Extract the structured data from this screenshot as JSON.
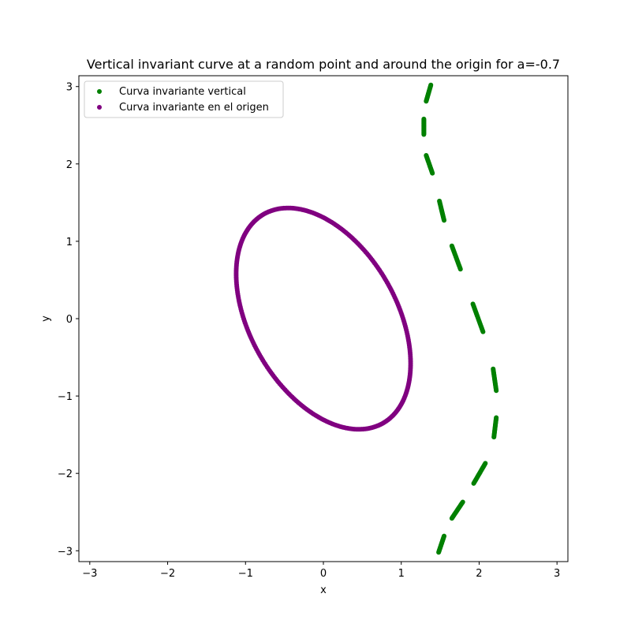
{
  "chart_data": {
    "type": "scatter",
    "title": "Vertical invariant curve at a random point and around the origin for a=-0.7",
    "xlabel": "x",
    "ylabel": "y",
    "xlim": [
      -3.14,
      3.14
    ],
    "ylim": [
      -3.14,
      3.14
    ],
    "xticks": [
      -3,
      -2,
      -1,
      0,
      1,
      2,
      3
    ],
    "yticks": [
      -3,
      -2,
      -1,
      0,
      1,
      2,
      3
    ],
    "x_tick_labels": [
      "−3",
      "−2",
      "−1",
      "0",
      "1",
      "2",
      "3"
    ],
    "y_tick_labels": [
      "−3",
      "−2",
      "−1",
      "0",
      "1",
      "2",
      "3"
    ],
    "grid": false,
    "legend_position": "top-left",
    "series": [
      {
        "name": "Curva invariante vertical",
        "color": "#008000",
        "shape": "segmented vertical arc",
        "segments": [
          [
            [
              1.32,
              2.81
            ],
            [
              1.38,
              3.02
            ]
          ],
          [
            [
              1.29,
              2.38
            ],
            [
              1.29,
              2.58
            ]
          ],
          [
            [
              1.32,
              2.11
            ],
            [
              1.4,
              1.88
            ]
          ],
          [
            [
              1.49,
              1.52
            ],
            [
              1.55,
              1.27
            ]
          ],
          [
            [
              1.65,
              0.94
            ],
            [
              1.76,
              0.64
            ]
          ],
          [
            [
              1.92,
              0.19
            ],
            [
              2.05,
              -0.17
            ]
          ],
          [
            [
              2.18,
              -0.65
            ],
            [
              2.22,
              -0.93
            ]
          ],
          [
            [
              2.22,
              -1.28
            ],
            [
              2.19,
              -1.53
            ]
          ],
          [
            [
              2.08,
              -1.87
            ],
            [
              1.93,
              -2.13
            ]
          ],
          [
            [
              1.79,
              -2.37
            ],
            [
              1.65,
              -2.58
            ]
          ],
          [
            [
              1.55,
              -2.81
            ],
            [
              1.48,
              -3.02
            ]
          ]
        ]
      },
      {
        "name": "Curva invariante en el origen",
        "color": "#800080",
        "shape": "closed ellipse",
        "ellipse": {
          "center": [
            0.0,
            0.0
          ],
          "top_point": [
            -0.36,
            1.43
          ],
          "bottom_point": [
            0.36,
            -1.43
          ],
          "left_x": -1.12,
          "right_x": 1.12,
          "x_at_left_extreme": -1.12,
          "y_at_left_extreme": 0.58,
          "y_at_right_extreme": -0.58
        }
      }
    ]
  }
}
